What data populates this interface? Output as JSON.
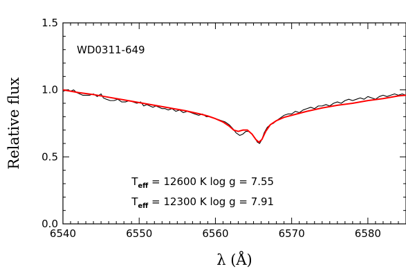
{
  "chart_data": {
    "type": "line",
    "object_label": "WD0311-649",
    "xlabel": "λ (Å)",
    "ylabel": "Relative flux",
    "xlim": [
      6540,
      6585
    ],
    "ylim": [
      0.0,
      1.5
    ],
    "xticks": [
      6540,
      6550,
      6560,
      6570,
      6580
    ],
    "xtick_labels": [
      "6540",
      "6550",
      "6560",
      "6570",
      "6580"
    ],
    "yticks": [
      0.0,
      0.5,
      1.0,
      1.5
    ],
    "ytick_labels": [
      "0.0",
      "0.5",
      "1.0",
      "1.5"
    ],
    "grid": false,
    "annotations": [
      {
        "T_symbol": "T",
        "T_sub": "eff",
        "text": "= 12600 K  log g = 7.55",
        "wavelength": 6549,
        "flux": 0.29
      },
      {
        "T_symbol": "T",
        "T_sub": "eff",
        "text": "= 12300 K  log g = 7.91",
        "wavelength": 6549,
        "flux": 0.14
      }
    ],
    "series": [
      {
        "color": "#000000",
        "x": [
          6540.0,
          6540.6,
          6541.0,
          6541.4,
          6541.8,
          6542.2,
          6542.6,
          6543.0,
          6543.5,
          6544.0,
          6544.5,
          6545.0,
          6545.3,
          6545.7,
          6546.2,
          6546.7,
          6547.2,
          6547.7,
          6548.2,
          6548.7,
          6549.2,
          6549.7,
          6550.2,
          6550.6,
          6551.0,
          6551.4,
          6551.8,
          6552.2,
          6552.6,
          6553.0,
          6553.4,
          6553.8,
          6554.3,
          6554.8,
          6555.3,
          6555.8,
          6556.3,
          6556.8,
          6557.3,
          6557.8,
          6558.3,
          6558.8,
          6559.3,
          6559.8,
          6560.3,
          6560.8,
          6561.3,
          6561.8,
          6562.3,
          6562.7,
          6563.2,
          6563.6,
          6564.0,
          6564.4,
          6564.8,
          6565.2,
          6565.5,
          6565.8,
          6566.1,
          6566.4,
          6566.8,
          6567.2,
          6567.6,
          6568.0,
          6568.5,
          6569.0,
          6569.5,
          6570.0,
          6570.5,
          6571.0,
          6571.5,
          6572.0,
          6572.5,
          6573.0,
          6573.5,
          6574.0,
          6574.5,
          6575.0,
          6575.5,
          6576.0,
          6576.5,
          6577.0,
          6577.5,
          6578.0,
          6578.5,
          6579.0,
          6579.5,
          6580.0,
          6580.5,
          6581.0,
          6581.5,
          6582.0,
          6582.5,
          6583.0,
          6583.5,
          6584.0,
          6584.5,
          6585.0
        ],
        "values": [
          0.99,
          1.0,
          0.99,
          1.0,
          0.98,
          0.97,
          0.96,
          0.96,
          0.96,
          0.97,
          0.95,
          0.97,
          0.94,
          0.93,
          0.92,
          0.92,
          0.93,
          0.91,
          0.91,
          0.92,
          0.91,
          0.9,
          0.91,
          0.88,
          0.89,
          0.88,
          0.87,
          0.88,
          0.87,
          0.86,
          0.86,
          0.85,
          0.86,
          0.84,
          0.85,
          0.83,
          0.84,
          0.83,
          0.82,
          0.81,
          0.82,
          0.8,
          0.8,
          0.79,
          0.78,
          0.77,
          0.76,
          0.74,
          0.71,
          0.68,
          0.66,
          0.67,
          0.69,
          0.69,
          0.67,
          0.64,
          0.61,
          0.6,
          0.63,
          0.68,
          0.72,
          0.74,
          0.75,
          0.77,
          0.79,
          0.81,
          0.82,
          0.82,
          0.84,
          0.83,
          0.85,
          0.86,
          0.87,
          0.86,
          0.88,
          0.88,
          0.89,
          0.88,
          0.9,
          0.91,
          0.9,
          0.92,
          0.93,
          0.92,
          0.93,
          0.94,
          0.93,
          0.95,
          0.94,
          0.93,
          0.95,
          0.96,
          0.95,
          0.96,
          0.97,
          0.96,
          0.97,
          0.96
        ]
      },
      {
        "color": "#ff0000",
        "x": [
          6540.0,
          6542.0,
          6544.0,
          6546.0,
          6548.0,
          6550.0,
          6552.0,
          6554.0,
          6556.0,
          6558.0,
          6559.0,
          6560.0,
          6561.0,
          6561.8,
          6562.4,
          6563.0,
          6563.6,
          6564.2,
          6564.8,
          6565.3,
          6565.7,
          6566.1,
          6566.6,
          6567.2,
          6568.0,
          6569.0,
          6570.0,
          6572.0,
          6574.0,
          6576.0,
          6578.0,
          6580.0,
          6582.0,
          6584.0,
          6585.0
        ],
        "values": [
          1.0,
          0.98,
          0.965,
          0.945,
          0.925,
          0.905,
          0.885,
          0.865,
          0.845,
          0.82,
          0.805,
          0.785,
          0.76,
          0.73,
          0.7,
          0.69,
          0.7,
          0.7,
          0.67,
          0.63,
          0.61,
          0.63,
          0.69,
          0.74,
          0.77,
          0.795,
          0.81,
          0.84,
          0.865,
          0.885,
          0.9,
          0.92,
          0.935,
          0.955,
          0.96
        ]
      }
    ]
  }
}
